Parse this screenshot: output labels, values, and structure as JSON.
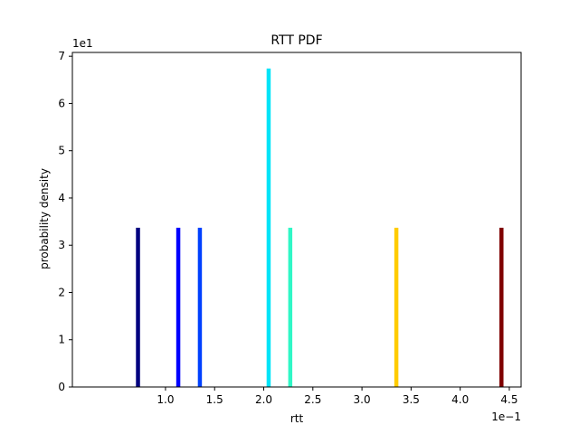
{
  "chart_data": {
    "type": "bar",
    "title": "RTT PDF",
    "xlabel": "rtt",
    "ylabel": "probability density",
    "x_multiplier_label": "1e−1",
    "y_multiplier_label": "1e1",
    "xlim": [
      0.052,
      4.62
    ],
    "ylim": [
      0,
      7.08
    ],
    "x_ticks": [
      1.0,
      1.5,
      2.0,
      2.5,
      3.0,
      3.5,
      4.0,
      4.5
    ],
    "x_tick_labels": [
      "1.0",
      "1.5",
      "2.0",
      "2.5",
      "3.0",
      "3.5",
      "4.0",
      "4.5"
    ],
    "y_ticks": [
      0,
      1,
      2,
      3,
      4,
      5,
      6,
      7
    ],
    "y_tick_labels": [
      "0",
      "1",
      "2",
      "3",
      "4",
      "5",
      "6",
      "7"
    ],
    "grid": false,
    "legend": "none",
    "bars": [
      {
        "x": 0.72,
        "value": 3.37,
        "color": "#00007f"
      },
      {
        "x": 1.13,
        "value": 3.37,
        "color": "#0000ff"
      },
      {
        "x": 1.35,
        "value": 3.37,
        "color": "#0040ff"
      },
      {
        "x": 2.05,
        "value": 6.74,
        "color": "#00e4f8"
      },
      {
        "x": 2.27,
        "value": 3.37,
        "color": "#2ff7c6"
      },
      {
        "x": 3.35,
        "value": 3.37,
        "color": "#ffcc00"
      },
      {
        "x": 4.42,
        "value": 3.37,
        "color": "#7f0000"
      }
    ]
  }
}
